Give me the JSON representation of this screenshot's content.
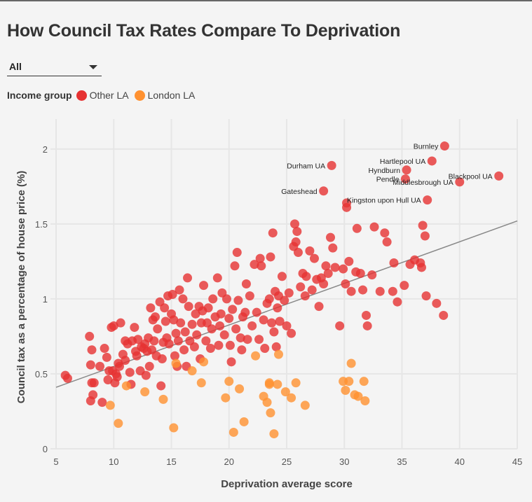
{
  "header": {
    "title": "How Council Tax Rates Compare To Deprivation"
  },
  "filter": {
    "selected": "All"
  },
  "legend": {
    "title": "Income group",
    "items": [
      {
        "label": "Other LA",
        "color": "#e63232"
      },
      {
        "label": "London LA",
        "color": "#ff9130"
      }
    ]
  },
  "chart_data": {
    "type": "scatter",
    "title": "How Council Tax Rates Compare To Deprivation",
    "xlabel": "Deprivation average score",
    "ylabel": "Council tax as a percentage of house price (%)",
    "xlim": [
      5,
      45
    ],
    "ylim": [
      0,
      2.2
    ],
    "xticks": [
      5,
      10,
      15,
      20,
      25,
      30,
      35,
      40,
      45
    ],
    "yticks": [
      0,
      0.5,
      1,
      1.5,
      2
    ],
    "grid": true,
    "legend_position": "top-left",
    "trendline": {
      "x": [
        5,
        45
      ],
      "y": [
        0.41,
        1.52
      ]
    },
    "series": [
      {
        "name": "Other LA",
        "color": "#e63232",
        "points": [
          [
            5.8,
            0.49
          ],
          [
            6.0,
            0.47
          ],
          [
            7.9,
            0.75
          ],
          [
            8.0,
            0.56
          ],
          [
            8.1,
            0.66
          ],
          [
            8.1,
            0.44
          ],
          [
            8.2,
            0.36
          ],
          [
            8.0,
            0.32
          ],
          [
            8.3,
            0.44
          ],
          [
            8.8,
            0.55
          ],
          [
            9.0,
            0.31
          ],
          [
            9.2,
            0.67
          ],
          [
            9.4,
            0.61
          ],
          [
            9.5,
            0.46
          ],
          [
            9.6,
            0.52
          ],
          [
            9.8,
            0.81
          ],
          [
            9.9,
            0.52
          ],
          [
            10.0,
            0.82
          ],
          [
            10.1,
            0.44
          ],
          [
            10.2,
            0.5
          ],
          [
            10.3,
            0.48
          ],
          [
            10.4,
            0.57
          ],
          [
            10.5,
            0.55
          ],
          [
            10.6,
            0.84
          ],
          [
            10.8,
            0.63
          ],
          [
            11.0,
            0.72
          ],
          [
            11.0,
            0.59
          ],
          [
            11.2,
            0.7
          ],
          [
            11.4,
            0.51
          ],
          [
            11.5,
            0.43
          ],
          [
            11.6,
            0.72
          ],
          [
            11.8,
            0.81
          ],
          [
            11.9,
            0.65
          ],
          [
            12.0,
            0.62
          ],
          [
            12.1,
            0.73
          ],
          [
            12.3,
            0.52
          ],
          [
            12.4,
            0.68
          ],
          [
            12.6,
            0.67
          ],
          [
            12.7,
            0.7
          ],
          [
            12.8,
            0.49
          ],
          [
            12.9,
            0.65
          ],
          [
            13.0,
            0.74
          ],
          [
            13.1,
            0.55
          ],
          [
            13.2,
            0.94
          ],
          [
            13.3,
            0.66
          ],
          [
            13.4,
            0.86
          ],
          [
            13.5,
            0.72
          ],
          [
            13.6,
            0.88
          ],
          [
            13.7,
            0.62
          ],
          [
            13.8,
            0.8
          ],
          [
            14.0,
            0.98
          ],
          [
            14.1,
            0.42
          ],
          [
            14.2,
            0.6
          ],
          [
            14.3,
            0.71
          ],
          [
            14.4,
            0.94
          ],
          [
            14.5,
            0.85
          ],
          [
            14.6,
            0.74
          ],
          [
            14.7,
            1.02
          ],
          [
            14.8,
            0.7
          ],
          [
            15.0,
            0.9
          ],
          [
            15.1,
            1.03
          ],
          [
            15.2,
            0.86
          ],
          [
            15.3,
            0.62
          ],
          [
            15.4,
            0.77
          ],
          [
            15.5,
            0.55
          ],
          [
            15.6,
            0.72
          ],
          [
            15.7,
            1.06
          ],
          [
            15.8,
            0.84
          ],
          [
            16.0,
            1.0
          ],
          [
            16.1,
            0.66
          ],
          [
            16.2,
            0.78
          ],
          [
            16.3,
            0.55
          ],
          [
            16.4,
            1.14
          ],
          [
            16.5,
            0.95
          ],
          [
            16.6,
            0.72
          ],
          [
            16.8,
            0.83
          ],
          [
            17.0,
            0.68
          ],
          [
            17.1,
            0.9
          ],
          [
            17.2,
            0.76
          ],
          [
            17.4,
            0.95
          ],
          [
            17.5,
            0.6
          ],
          [
            17.6,
            0.84
          ],
          [
            17.7,
            0.92
          ],
          [
            17.8,
            1.09
          ],
          [
            18.0,
            0.72
          ],
          [
            18.1,
            0.84
          ],
          [
            18.2,
            0.94
          ],
          [
            18.4,
            0.67
          ],
          [
            18.5,
            0.8
          ],
          [
            18.6,
            1.0
          ],
          [
            18.8,
            0.88
          ],
          [
            19.0,
            1.14
          ],
          [
            19.1,
            0.69
          ],
          [
            19.2,
            0.82
          ],
          [
            19.3,
            0.9
          ],
          [
            19.4,
            1.04
          ],
          [
            19.6,
            0.76
          ],
          [
            19.8,
            1.0
          ],
          [
            20.0,
            0.87
          ],
          [
            20.1,
            0.69
          ],
          [
            20.2,
            0.58
          ],
          [
            20.3,
            0.93
          ],
          [
            20.5,
            1.22
          ],
          [
            20.6,
            0.8
          ],
          [
            20.7,
            1.31
          ],
          [
            20.8,
            0.99
          ],
          [
            21.0,
            0.74
          ],
          [
            21.1,
            0.66
          ],
          [
            21.2,
            0.88
          ],
          [
            21.4,
            0.91
          ],
          [
            21.5,
            1.1
          ],
          [
            21.6,
            0.73
          ],
          [
            21.8,
            1.02
          ],
          [
            22.0,
            0.82
          ],
          [
            22.2,
            1.23
          ],
          [
            22.4,
            0.91
          ],
          [
            22.6,
            0.73
          ],
          [
            22.7,
            1.27
          ],
          [
            22.8,
            1.22
          ],
          [
            23.0,
            0.86
          ],
          [
            23.1,
            0.67
          ],
          [
            23.3,
            0.97
          ],
          [
            23.5,
            1.0
          ],
          [
            23.6,
            1.28
          ],
          [
            23.7,
            0.84
          ],
          [
            23.8,
            1.44
          ],
          [
            23.9,
            0.78
          ],
          [
            24.0,
            1.05
          ],
          [
            24.1,
            0.68
          ],
          [
            24.2,
            0.94
          ],
          [
            24.3,
            1.02
          ],
          [
            24.4,
            0.85
          ],
          [
            24.6,
            1.15
          ],
          [
            24.8,
            0.99
          ],
          [
            25.0,
            0.82
          ],
          [
            25.2,
            1.04
          ],
          [
            25.4,
            0.77
          ],
          [
            25.6,
            1.35
          ],
          [
            25.7,
            1.5
          ],
          [
            25.8,
            1.38
          ],
          [
            25.9,
            1.45
          ],
          [
            26.0,
            1.31
          ],
          [
            26.2,
            1.08
          ],
          [
            26.4,
            1.17
          ],
          [
            26.6,
            1.02
          ],
          [
            26.7,
            1.15
          ],
          [
            27.0,
            1.32
          ],
          [
            27.2,
            1.06
          ],
          [
            27.4,
            1.27
          ],
          [
            27.6,
            1.13
          ],
          [
            27.8,
            0.95
          ],
          [
            28.0,
            1.14
          ],
          [
            28.2,
            1.1
          ],
          [
            28.4,
            1.22
          ],
          [
            28.6,
            1.17
          ],
          [
            28.8,
            1.41
          ],
          [
            29.0,
            1.34
          ],
          [
            29.2,
            1.21
          ],
          [
            29.6,
            0.82
          ],
          [
            29.9,
            1.2
          ],
          [
            30.1,
            1.1
          ],
          [
            30.4,
            1.25
          ],
          [
            30.6,
            1.05
          ],
          [
            31.0,
            1.18
          ],
          [
            31.1,
            1.47
          ],
          [
            31.4,
            1.17
          ],
          [
            31.6,
            1.06
          ],
          [
            31.9,
            0.89
          ],
          [
            32.0,
            0.82
          ],
          [
            32.4,
            1.16
          ],
          [
            32.6,
            1.48
          ],
          [
            33.1,
            1.05
          ],
          [
            33.5,
            1.44
          ],
          [
            33.7,
            1.38
          ],
          [
            34.2,
            1.05
          ],
          [
            34.3,
            1.24
          ],
          [
            34.6,
            0.98
          ],
          [
            35.2,
            1.09
          ],
          [
            35.7,
            1.23
          ],
          [
            36.1,
            1.26
          ],
          [
            36.6,
            1.24
          ],
          [
            36.8,
            1.49
          ],
          [
            37.0,
            1.42
          ],
          [
            37.1,
            1.02
          ],
          [
            36.7,
            1.21
          ],
          [
            38.0,
            0.97
          ],
          [
            38.6,
            0.89
          ],
          [
            30.2,
            1.61
          ],
          [
            30.2,
            1.64
          ]
        ]
      },
      {
        "name": "London LA",
        "color": "#ff9130",
        "points": [
          [
            9.7,
            0.29
          ],
          [
            10.4,
            0.17
          ],
          [
            11.1,
            0.42
          ],
          [
            12.7,
            0.38
          ],
          [
            14.3,
            0.33
          ],
          [
            15.2,
            0.14
          ],
          [
            15.4,
            0.57
          ],
          [
            16.8,
            0.52
          ],
          [
            17.6,
            0.44
          ],
          [
            19.7,
            0.34
          ],
          [
            20.0,
            0.45
          ],
          [
            20.4,
            0.11
          ],
          [
            20.9,
            0.4
          ],
          [
            21.3,
            0.18
          ],
          [
            22.3,
            0.62
          ],
          [
            23.0,
            0.35
          ],
          [
            23.3,
            0.31
          ],
          [
            23.5,
            0.44
          ],
          [
            23.5,
            0.43
          ],
          [
            23.6,
            0.24
          ],
          [
            23.9,
            0.1
          ],
          [
            24.2,
            0.43
          ],
          [
            24.9,
            0.38
          ],
          [
            25.4,
            0.34
          ],
          [
            25.8,
            0.44
          ],
          [
            26.6,
            0.29
          ],
          [
            29.9,
            0.45
          ],
          [
            30.1,
            0.39
          ],
          [
            30.6,
            0.57
          ],
          [
            30.4,
            0.45
          ],
          [
            30.9,
            0.36
          ],
          [
            31.2,
            0.35
          ],
          [
            31.7,
            0.45
          ],
          [
            31.8,
            0.32
          ],
          [
            24.3,
            0.63
          ],
          [
            17.8,
            0.58
          ]
        ]
      }
    ],
    "annotations": [
      {
        "label": "Burnley",
        "x": 38.7,
        "y": 2.02
      },
      {
        "label": "Durham UA",
        "x": 28.9,
        "y": 1.89
      },
      {
        "label": "Hartlepool UA",
        "x": 37.6,
        "y": 1.92
      },
      {
        "label": "Hyndburn",
        "x": 35.4,
        "y": 1.86
      },
      {
        "label": "Pendle",
        "x": 35.3,
        "y": 1.8
      },
      {
        "label": "Middlesbrough UA",
        "x": 40.0,
        "y": 1.78
      },
      {
        "label": "Blackpool UA",
        "x": 43.4,
        "y": 1.82
      },
      {
        "label": "Gateshead",
        "x": 28.2,
        "y": 1.72
      },
      {
        "label": "Kingston upon Hull UA",
        "x": 37.2,
        "y": 1.66
      }
    ]
  }
}
